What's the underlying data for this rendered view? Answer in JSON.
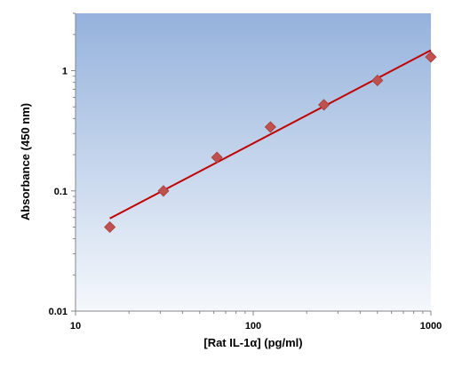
{
  "chart_data": {
    "type": "scatter",
    "title": "",
    "xlabel": "[Rat IL-1α] (pg/ml)",
    "ylabel": "Absorbance (450 nm)",
    "x_scale": "log",
    "y_scale": "log",
    "xlim": [
      10,
      1000
    ],
    "ylim": [
      0.01,
      3
    ],
    "x_ticks": [
      10,
      100,
      1000
    ],
    "x_tick_labels": [
      "10",
      "100",
      "1000"
    ],
    "y_ticks": [
      0.01,
      0.1,
      1
    ],
    "y_tick_labels": [
      "0.01",
      "0.1",
      "1"
    ],
    "grid": false,
    "legend": "none",
    "series": [
      {
        "kind": "points",
        "marker": "diamond",
        "color": "#c0504d",
        "x": [
          15.6,
          31.25,
          62.5,
          125,
          250,
          500,
          1000
        ],
        "y": [
          0.05,
          0.1,
          0.19,
          0.34,
          0.52,
          0.83,
          1.3
        ]
      },
      {
        "kind": "fit-line",
        "color": "#c00000",
        "x": [
          15.6,
          1000
        ],
        "y": [
          0.059,
          1.48
        ]
      }
    ],
    "background_gradient": [
      "#95b2dc",
      "#f5f8fc"
    ]
  }
}
